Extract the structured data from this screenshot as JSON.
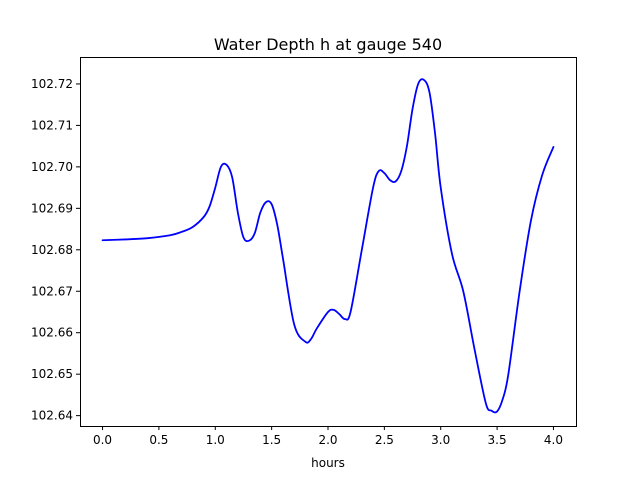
{
  "chart_data": {
    "type": "line",
    "title": "Water Depth h at gauge 540",
    "xlabel": "hours",
    "ylabel": "",
    "xlim": [
      -0.2,
      4.2
    ],
    "ylim": [
      102.6375,
      102.7265
    ],
    "grid": false,
    "xticks": [
      0.0,
      0.5,
      1.0,
      1.5,
      2.0,
      2.5,
      3.0,
      3.5,
      4.0
    ],
    "xtick_labels": [
      "0.0",
      "0.5",
      "1.0",
      "1.5",
      "2.0",
      "2.5",
      "3.0",
      "3.5",
      "4.0"
    ],
    "yticks": [
      102.64,
      102.65,
      102.66,
      102.67,
      102.68,
      102.69,
      102.7,
      102.71,
      102.72
    ],
    "ytick_labels": [
      "102.64",
      "102.65",
      "102.66",
      "102.67",
      "102.68",
      "102.69",
      "102.70",
      "102.71",
      "102.72"
    ],
    "series": [
      {
        "color": "#0000ff",
        "x": [
          0.0,
          0.2,
          0.4,
          0.6,
          0.7,
          0.8,
          0.9,
          0.95,
          1.0,
          1.05,
          1.1,
          1.15,
          1.2,
          1.25,
          1.3,
          1.35,
          1.4,
          1.45,
          1.5,
          1.55,
          1.6,
          1.7,
          1.8,
          1.85,
          1.9,
          2.0,
          2.05,
          2.1,
          2.15,
          2.2,
          2.3,
          2.4,
          2.45,
          2.5,
          2.55,
          2.6,
          2.65,
          2.7,
          2.75,
          2.8,
          2.85,
          2.9,
          2.95,
          3.0,
          3.1,
          3.2,
          3.3,
          3.4,
          3.45,
          3.5,
          3.55,
          3.6,
          3.7,
          3.8,
          3.9,
          4.0
        ],
        "y": [
          102.6823,
          102.6825,
          102.6828,
          102.6835,
          102.6843,
          102.6855,
          102.688,
          102.6905,
          102.695,
          102.7,
          102.7005,
          102.6975,
          102.689,
          102.683,
          102.6822,
          102.684,
          102.689,
          102.6915,
          102.691,
          102.686,
          102.678,
          102.662,
          102.6578,
          102.6585,
          102.661,
          102.665,
          102.6655,
          102.6645,
          102.6633,
          102.665,
          102.68,
          102.695,
          102.699,
          102.6985,
          102.6968,
          102.6965,
          102.699,
          102.705,
          102.714,
          102.72,
          102.721,
          102.718,
          102.708,
          102.695,
          102.679,
          102.67,
          102.656,
          102.643,
          102.6412,
          102.641,
          102.644,
          102.65,
          102.67,
          102.687,
          102.698,
          102.7048
        ]
      }
    ]
  }
}
